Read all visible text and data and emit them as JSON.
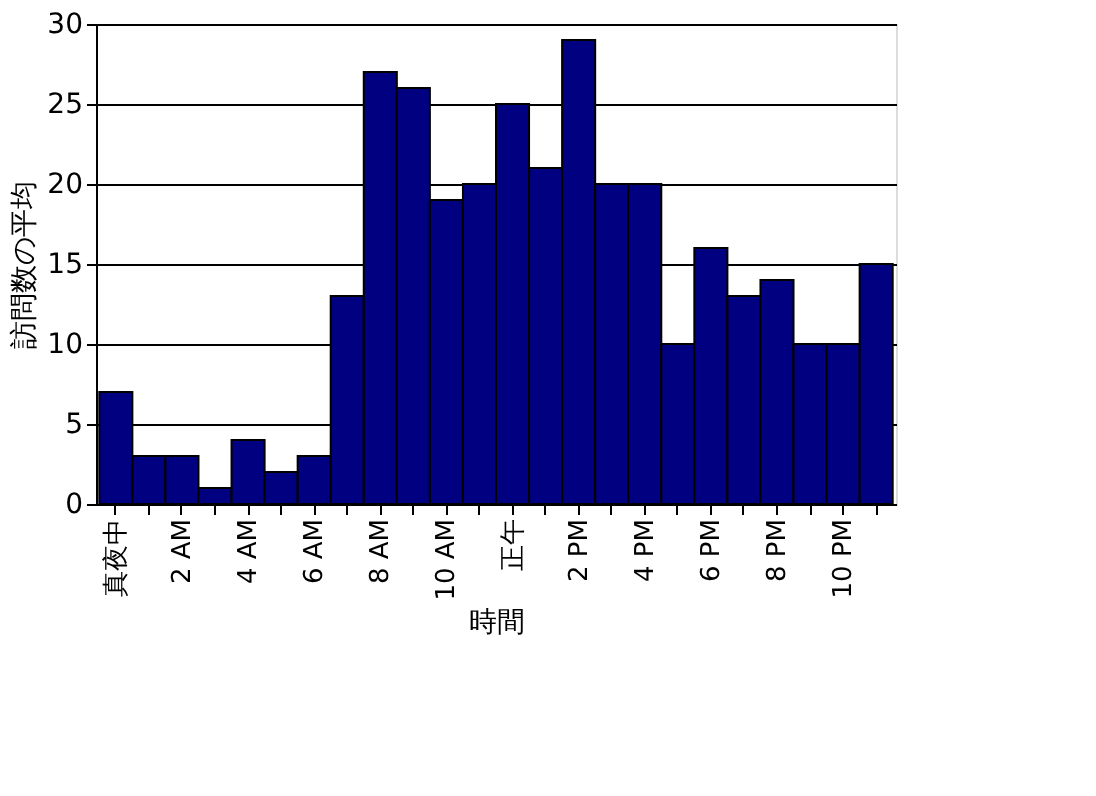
{
  "chart_data": {
    "type": "bar",
    "xlabel": "時間",
    "ylabel": "訪問数の平均",
    "categories": [
      "真夜中",
      null,
      "2 AM",
      null,
      "4 AM",
      null,
      "6 AM",
      null,
      "8 AM",
      null,
      "10 AM",
      null,
      "正午",
      null,
      "2 PM",
      null,
      "4 PM",
      null,
      "6 PM",
      null,
      "8 PM",
      null,
      "10 PM",
      null
    ],
    "values": [
      7,
      3,
      3,
      1,
      4,
      2,
      3,
      13,
      27,
      26,
      19,
      20,
      25,
      21,
      29,
      20,
      20,
      10,
      16,
      13,
      14,
      10,
      10,
      15
    ],
    "color": "#000080",
    "ylim": [
      0,
      30
    ],
    "yticks": [
      0,
      5,
      10,
      15,
      20,
      25,
      30
    ],
    "grid": "y"
  }
}
